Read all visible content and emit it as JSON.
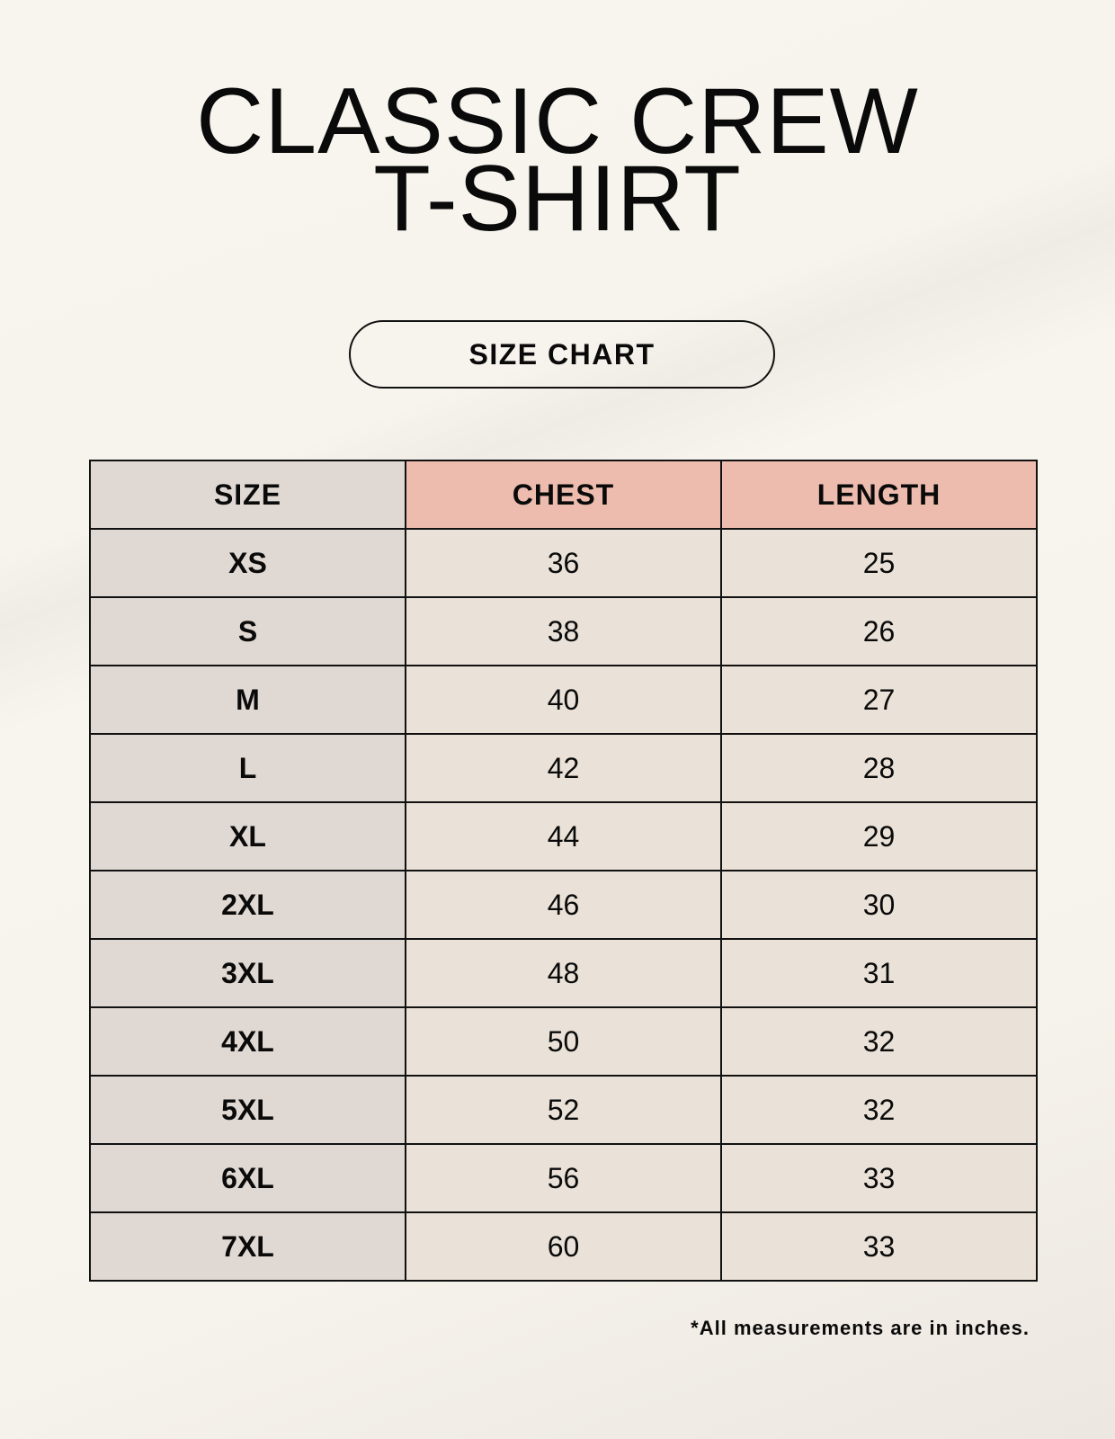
{
  "title_line1": "CLASSIC CREW",
  "title_line2": "T-SHIRT",
  "badge": "SIZE CHART",
  "table": {
    "headers": [
      "SIZE",
      "CHEST",
      "LENGTH"
    ],
    "rows": [
      [
        "XS",
        "36",
        "25"
      ],
      [
        "S",
        "38",
        "26"
      ],
      [
        "M",
        "40",
        "27"
      ],
      [
        "L",
        "42",
        "28"
      ],
      [
        "XL",
        "44",
        "29"
      ],
      [
        "2XL",
        "46",
        "30"
      ],
      [
        "3XL",
        "48",
        "31"
      ],
      [
        "4XL",
        "50",
        "32"
      ],
      [
        "5XL",
        "52",
        "32"
      ],
      [
        "6XL",
        "56",
        "33"
      ],
      [
        "7XL",
        "60",
        "33"
      ]
    ]
  },
  "footnote": "*All measurements are in inches.",
  "colors": {
    "header_accent": "#edbcae",
    "size_column": "#e0d8d2",
    "value_cells": "#eae2d8"
  }
}
